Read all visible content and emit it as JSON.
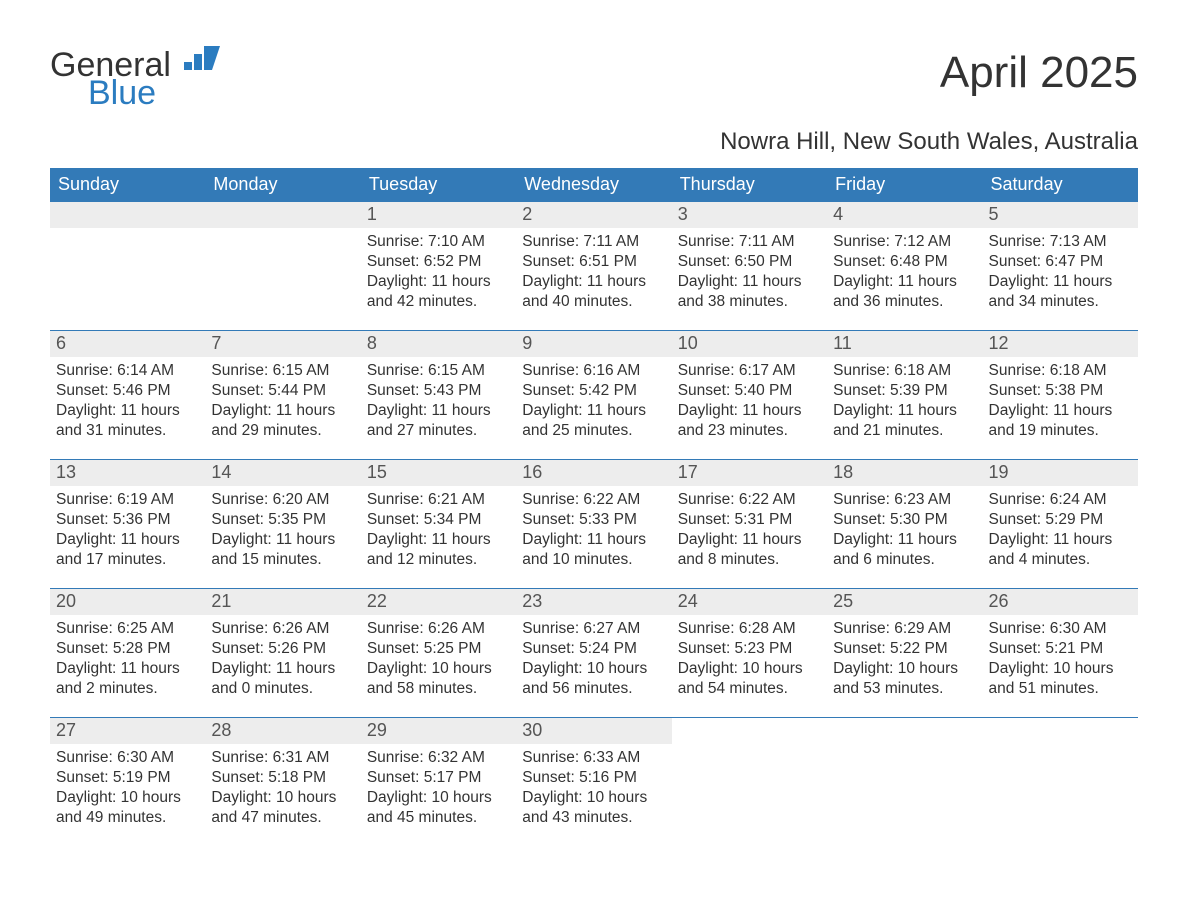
{
  "logo": {
    "general": "General",
    "blue": "Blue"
  },
  "title": "April 2025",
  "subtitle": "Nowra Hill, New South Wales, Australia",
  "colors": {
    "header_bg": "#337ab7",
    "header_text": "#ffffff",
    "daynum_bg": "#ededed",
    "daynum_text": "#555555",
    "body_text": "#333333",
    "row_border": "#337ab7",
    "logo_blue": "#2b7cc0"
  },
  "weekdays": [
    "Sunday",
    "Monday",
    "Tuesday",
    "Wednesday",
    "Thursday",
    "Friday",
    "Saturday"
  ],
  "weeks": [
    [
      {
        "empty": true
      },
      {
        "empty": true
      },
      {
        "num": "1",
        "sunrise": "Sunrise: 7:10 AM",
        "sunset": "Sunset: 6:52 PM",
        "dl1": "Daylight: 11 hours",
        "dl2": "and 42 minutes."
      },
      {
        "num": "2",
        "sunrise": "Sunrise: 7:11 AM",
        "sunset": "Sunset: 6:51 PM",
        "dl1": "Daylight: 11 hours",
        "dl2": "and 40 minutes."
      },
      {
        "num": "3",
        "sunrise": "Sunrise: 7:11 AM",
        "sunset": "Sunset: 6:50 PM",
        "dl1": "Daylight: 11 hours",
        "dl2": "and 38 minutes."
      },
      {
        "num": "4",
        "sunrise": "Sunrise: 7:12 AM",
        "sunset": "Sunset: 6:48 PM",
        "dl1": "Daylight: 11 hours",
        "dl2": "and 36 minutes."
      },
      {
        "num": "5",
        "sunrise": "Sunrise: 7:13 AM",
        "sunset": "Sunset: 6:47 PM",
        "dl1": "Daylight: 11 hours",
        "dl2": "and 34 minutes."
      }
    ],
    [
      {
        "num": "6",
        "sunrise": "Sunrise: 6:14 AM",
        "sunset": "Sunset: 5:46 PM",
        "dl1": "Daylight: 11 hours",
        "dl2": "and 31 minutes."
      },
      {
        "num": "7",
        "sunrise": "Sunrise: 6:15 AM",
        "sunset": "Sunset: 5:44 PM",
        "dl1": "Daylight: 11 hours",
        "dl2": "and 29 minutes."
      },
      {
        "num": "8",
        "sunrise": "Sunrise: 6:15 AM",
        "sunset": "Sunset: 5:43 PM",
        "dl1": "Daylight: 11 hours",
        "dl2": "and 27 minutes."
      },
      {
        "num": "9",
        "sunrise": "Sunrise: 6:16 AM",
        "sunset": "Sunset: 5:42 PM",
        "dl1": "Daylight: 11 hours",
        "dl2": "and 25 minutes."
      },
      {
        "num": "10",
        "sunrise": "Sunrise: 6:17 AM",
        "sunset": "Sunset: 5:40 PM",
        "dl1": "Daylight: 11 hours",
        "dl2": "and 23 minutes."
      },
      {
        "num": "11",
        "sunrise": "Sunrise: 6:18 AM",
        "sunset": "Sunset: 5:39 PM",
        "dl1": "Daylight: 11 hours",
        "dl2": "and 21 minutes."
      },
      {
        "num": "12",
        "sunrise": "Sunrise: 6:18 AM",
        "sunset": "Sunset: 5:38 PM",
        "dl1": "Daylight: 11 hours",
        "dl2": "and 19 minutes."
      }
    ],
    [
      {
        "num": "13",
        "sunrise": "Sunrise: 6:19 AM",
        "sunset": "Sunset: 5:36 PM",
        "dl1": "Daylight: 11 hours",
        "dl2": "and 17 minutes."
      },
      {
        "num": "14",
        "sunrise": "Sunrise: 6:20 AM",
        "sunset": "Sunset: 5:35 PM",
        "dl1": "Daylight: 11 hours",
        "dl2": "and 15 minutes."
      },
      {
        "num": "15",
        "sunrise": "Sunrise: 6:21 AM",
        "sunset": "Sunset: 5:34 PM",
        "dl1": "Daylight: 11 hours",
        "dl2": "and 12 minutes."
      },
      {
        "num": "16",
        "sunrise": "Sunrise: 6:22 AM",
        "sunset": "Sunset: 5:33 PM",
        "dl1": "Daylight: 11 hours",
        "dl2": "and 10 minutes."
      },
      {
        "num": "17",
        "sunrise": "Sunrise: 6:22 AM",
        "sunset": "Sunset: 5:31 PM",
        "dl1": "Daylight: 11 hours",
        "dl2": "and 8 minutes."
      },
      {
        "num": "18",
        "sunrise": "Sunrise: 6:23 AM",
        "sunset": "Sunset: 5:30 PM",
        "dl1": "Daylight: 11 hours",
        "dl2": "and 6 minutes."
      },
      {
        "num": "19",
        "sunrise": "Sunrise: 6:24 AM",
        "sunset": "Sunset: 5:29 PM",
        "dl1": "Daylight: 11 hours",
        "dl2": "and 4 minutes."
      }
    ],
    [
      {
        "num": "20",
        "sunrise": "Sunrise: 6:25 AM",
        "sunset": "Sunset: 5:28 PM",
        "dl1": "Daylight: 11 hours",
        "dl2": "and 2 minutes."
      },
      {
        "num": "21",
        "sunrise": "Sunrise: 6:26 AM",
        "sunset": "Sunset: 5:26 PM",
        "dl1": "Daylight: 11 hours",
        "dl2": "and 0 minutes."
      },
      {
        "num": "22",
        "sunrise": "Sunrise: 6:26 AM",
        "sunset": "Sunset: 5:25 PM",
        "dl1": "Daylight: 10 hours",
        "dl2": "and 58 minutes."
      },
      {
        "num": "23",
        "sunrise": "Sunrise: 6:27 AM",
        "sunset": "Sunset: 5:24 PM",
        "dl1": "Daylight: 10 hours",
        "dl2": "and 56 minutes."
      },
      {
        "num": "24",
        "sunrise": "Sunrise: 6:28 AM",
        "sunset": "Sunset: 5:23 PM",
        "dl1": "Daylight: 10 hours",
        "dl2": "and 54 minutes."
      },
      {
        "num": "25",
        "sunrise": "Sunrise: 6:29 AM",
        "sunset": "Sunset: 5:22 PM",
        "dl1": "Daylight: 10 hours",
        "dl2": "and 53 minutes."
      },
      {
        "num": "26",
        "sunrise": "Sunrise: 6:30 AM",
        "sunset": "Sunset: 5:21 PM",
        "dl1": "Daylight: 10 hours",
        "dl2": "and 51 minutes."
      }
    ],
    [
      {
        "num": "27",
        "sunrise": "Sunrise: 6:30 AM",
        "sunset": "Sunset: 5:19 PM",
        "dl1": "Daylight: 10 hours",
        "dl2": "and 49 minutes."
      },
      {
        "num": "28",
        "sunrise": "Sunrise: 6:31 AM",
        "sunset": "Sunset: 5:18 PM",
        "dl1": "Daylight: 10 hours",
        "dl2": "and 47 minutes."
      },
      {
        "num": "29",
        "sunrise": "Sunrise: 6:32 AM",
        "sunset": "Sunset: 5:17 PM",
        "dl1": "Daylight: 10 hours",
        "dl2": "and 45 minutes."
      },
      {
        "num": "30",
        "sunrise": "Sunrise: 6:33 AM",
        "sunset": "Sunset: 5:16 PM",
        "dl1": "Daylight: 10 hours",
        "dl2": "and 43 minutes."
      },
      {
        "empty": true,
        "nobar": true
      },
      {
        "empty": true,
        "nobar": true
      },
      {
        "empty": true,
        "nobar": true
      }
    ]
  ]
}
